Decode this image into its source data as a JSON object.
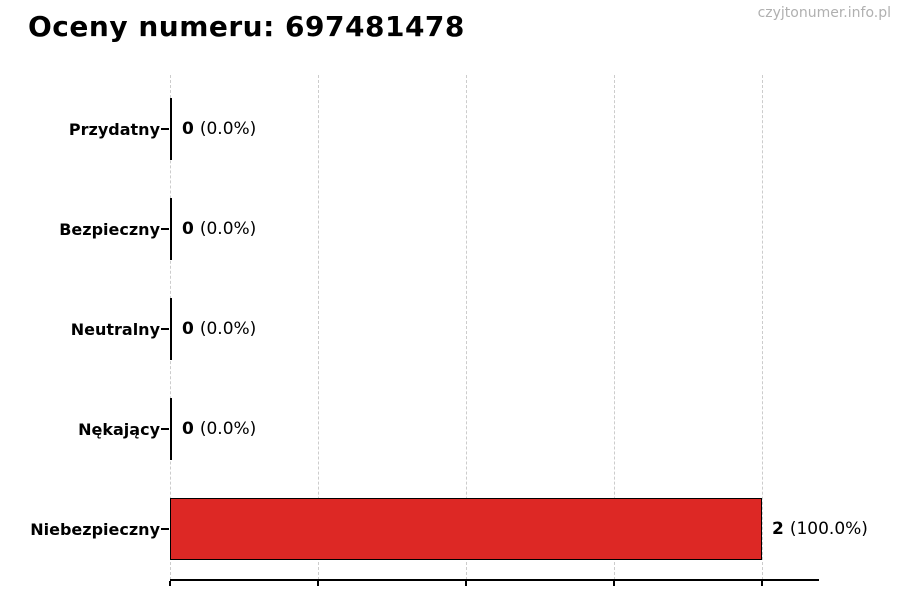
{
  "header": {
    "title": "Oceny numeru: 697481478",
    "watermark": "czyjtonumer.info.pl"
  },
  "chart_data": {
    "type": "bar",
    "orientation": "horizontal",
    "title": "Oceny numeru: 697481478",
    "categories": [
      "Przydatny",
      "Bezpieczny",
      "Neutralny",
      "Nękający",
      "Niebezpieczny"
    ],
    "values": [
      0,
      0,
      0,
      0,
      2
    ],
    "value_labels": [
      {
        "count": "0",
        "percent": "(0.0%)"
      },
      {
        "count": "0",
        "percent": "(0.0%)"
      },
      {
        "count": "0",
        "percent": "(0.0%)"
      },
      {
        "count": "0",
        "percent": "(0.0%)"
      },
      {
        "count": "2",
        "percent": "(100.0%)"
      }
    ],
    "xlim": [
      0,
      2.19
    ],
    "xticks": [
      0,
      0.5,
      1.0,
      1.5,
      2.0
    ],
    "xtick_labels_visible": false,
    "grid": "vertical-dashed",
    "legend": "none",
    "colors": {
      "bar_fill": "#dd2825",
      "bar_edge": "#000000",
      "gridline": "#cccccc",
      "axis": "#000000",
      "title_text": "#000000",
      "watermark_text": "#b0b0b0"
    }
  }
}
